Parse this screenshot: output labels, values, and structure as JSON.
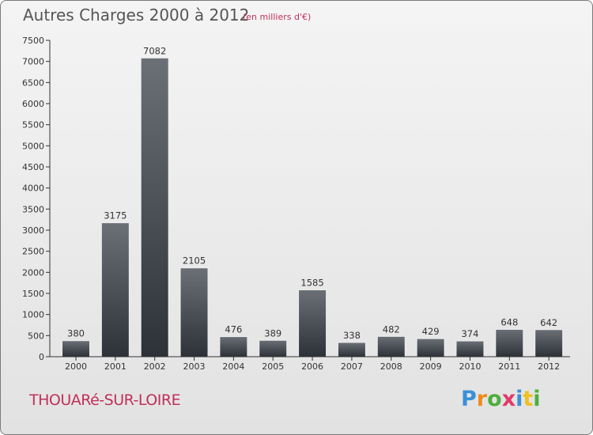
{
  "header": {
    "title": "Autres Charges 2000 à 2012",
    "subtitle": "(en milliers d'€)"
  },
  "footer": {
    "place": "THOUARé-SUR-LOIRE",
    "logo_letters": [
      "P",
      "r",
      "o",
      "x",
      "i",
      "t",
      "i"
    ],
    "logo_colors": [
      "#3a8fd8",
      "#f08a1c",
      "#4caf3c",
      "#e23a6a",
      "#3a8fd8",
      "#f0c020",
      "#4caf3c"
    ]
  },
  "colors": {
    "bar_top": "#6b7077",
    "bar_bottom": "#2d3138",
    "axis": "#333333"
  },
  "chart_data": {
    "type": "bar",
    "title": "Autres Charges 2000 à 2012",
    "subtitle": "(en milliers d'€)",
    "categories": [
      "2000",
      "2001",
      "2002",
      "2003",
      "2004",
      "2005",
      "2006",
      "2007",
      "2008",
      "2009",
      "2010",
      "2011",
      "2012"
    ],
    "values": [
      380,
      3175,
      7082,
      2105,
      476,
      389,
      1585,
      338,
      482,
      429,
      374,
      648,
      642
    ],
    "data_labels": [
      "380",
      "3175",
      "7082",
      "2105",
      "476",
      "389",
      "1585",
      "338",
      "482",
      "429",
      "374",
      "648",
      "642"
    ],
    "yticks": [
      0,
      500,
      1000,
      1500,
      2000,
      2500,
      3000,
      3500,
      4000,
      4500,
      5000,
      5500,
      6000,
      6500,
      7000,
      7500
    ],
    "ylim": [
      0,
      7500
    ],
    "xlabel": "",
    "ylabel": "",
    "grid": false,
    "legend": "none"
  }
}
